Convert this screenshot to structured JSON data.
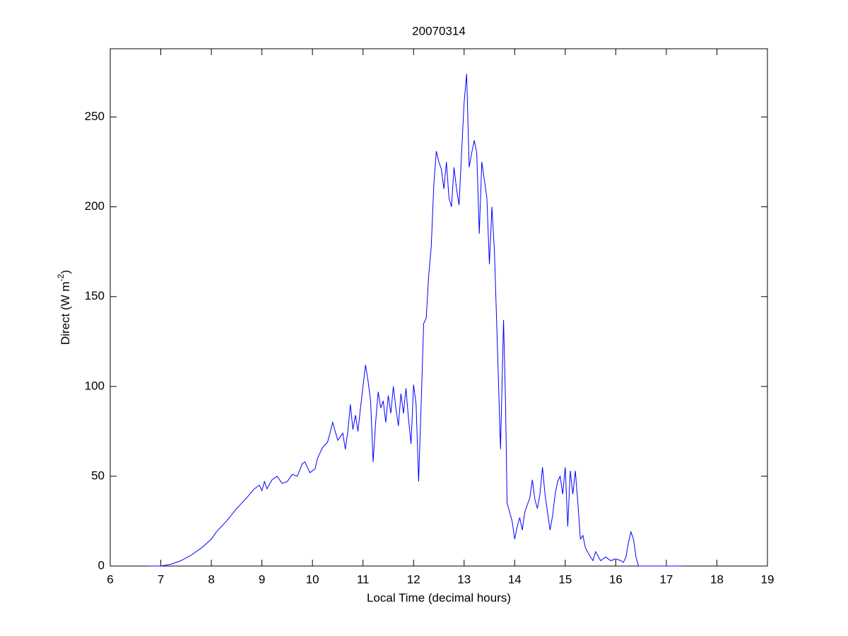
{
  "chart_data": {
    "type": "line",
    "title": "20070314",
    "xlabel": "Local Time (decimal hours)",
    "ylabel": [
      "Direct (W m",
      "-2",
      ")"
    ],
    "xlim": [
      6,
      19
    ],
    "ylim": [
      0,
      288
    ],
    "xticks": [
      6,
      7,
      8,
      9,
      10,
      11,
      12,
      13,
      14,
      15,
      16,
      17,
      18,
      19
    ],
    "yticks": [
      0,
      50,
      100,
      150,
      200,
      250
    ],
    "grid": false,
    "series": [
      {
        "name": "Direct",
        "color": "#0000ff",
        "x": [
          6.75,
          7.0,
          7.2,
          7.4,
          7.6,
          7.8,
          8.0,
          8.1,
          8.3,
          8.5,
          8.7,
          8.85,
          8.95,
          9.0,
          9.05,
          9.1,
          9.2,
          9.3,
          9.4,
          9.5,
          9.6,
          9.7,
          9.8,
          9.85,
          9.95,
          10.05,
          10.1,
          10.2,
          10.3,
          10.4,
          10.5,
          10.6,
          10.65,
          10.7,
          10.75,
          10.8,
          10.85,
          10.9,
          10.95,
          11.05,
          11.1,
          11.15,
          11.2,
          11.25,
          11.3,
          11.35,
          11.4,
          11.45,
          11.5,
          11.55,
          11.6,
          11.65,
          11.7,
          11.75,
          11.8,
          11.85,
          11.9,
          11.95,
          12.0,
          12.05,
          12.1,
          12.15,
          12.2,
          12.25,
          12.3,
          12.35,
          12.4,
          12.45,
          12.5,
          12.55,
          12.6,
          12.65,
          12.7,
          12.75,
          12.8,
          12.85,
          12.9,
          12.95,
          13.0,
          13.05,
          13.1,
          13.15,
          13.2,
          13.25,
          13.3,
          13.35,
          13.4,
          13.45,
          13.5,
          13.55,
          13.6,
          13.65,
          13.7,
          13.72,
          13.78,
          13.82,
          13.85,
          13.9,
          13.95,
          14.0,
          14.05,
          14.1,
          14.15,
          14.2,
          14.3,
          14.35,
          14.4,
          14.45,
          14.5,
          14.55,
          14.6,
          14.65,
          14.7,
          14.75,
          14.8,
          14.85,
          14.9,
          14.95,
          15.0,
          15.05,
          15.1,
          15.15,
          15.2,
          15.25,
          15.3,
          15.35,
          15.4,
          15.5,
          15.55,
          15.6,
          15.7,
          15.8,
          15.9,
          16.0,
          16.1,
          16.15,
          16.2,
          16.25,
          16.3,
          16.35,
          16.4,
          16.45,
          16.6,
          17.3
        ],
        "values": [
          0,
          0,
          1,
          3,
          6,
          10,
          15,
          19,
          25,
          32,
          38,
          43,
          45,
          42,
          47,
          43,
          48,
          50,
          46,
          47,
          51,
          50,
          57,
          58,
          52,
          54,
          60,
          66,
          69,
          80,
          70,
          74,
          65,
          75,
          90,
          76,
          84,
          75,
          88,
          112,
          103,
          92,
          58,
          80,
          97,
          88,
          92,
          80,
          95,
          85,
          100,
          88,
          78,
          96,
          85,
          99,
          82,
          68,
          101,
          90,
          47,
          90,
          135,
          138,
          162,
          178,
          212,
          231,
          225,
          221,
          210,
          225,
          205,
          200,
          222,
          210,
          201,
          230,
          258,
          274,
          222,
          230,
          237,
          230,
          185,
          225,
          215,
          205,
          168,
          200,
          175,
          130,
          83,
          65,
          137,
          90,
          35,
          30,
          25,
          15,
          22,
          27,
          20,
          30,
          38,
          48,
          37,
          32,
          40,
          55,
          40,
          30,
          20,
          28,
          40,
          47,
          50,
          40,
          55,
          22,
          53,
          40,
          53,
          35,
          15,
          17,
          10,
          5,
          3,
          8,
          3,
          5,
          3,
          4,
          3,
          2,
          5,
          13,
          19,
          15,
          5,
          0,
          0,
          0
        ]
      }
    ]
  }
}
